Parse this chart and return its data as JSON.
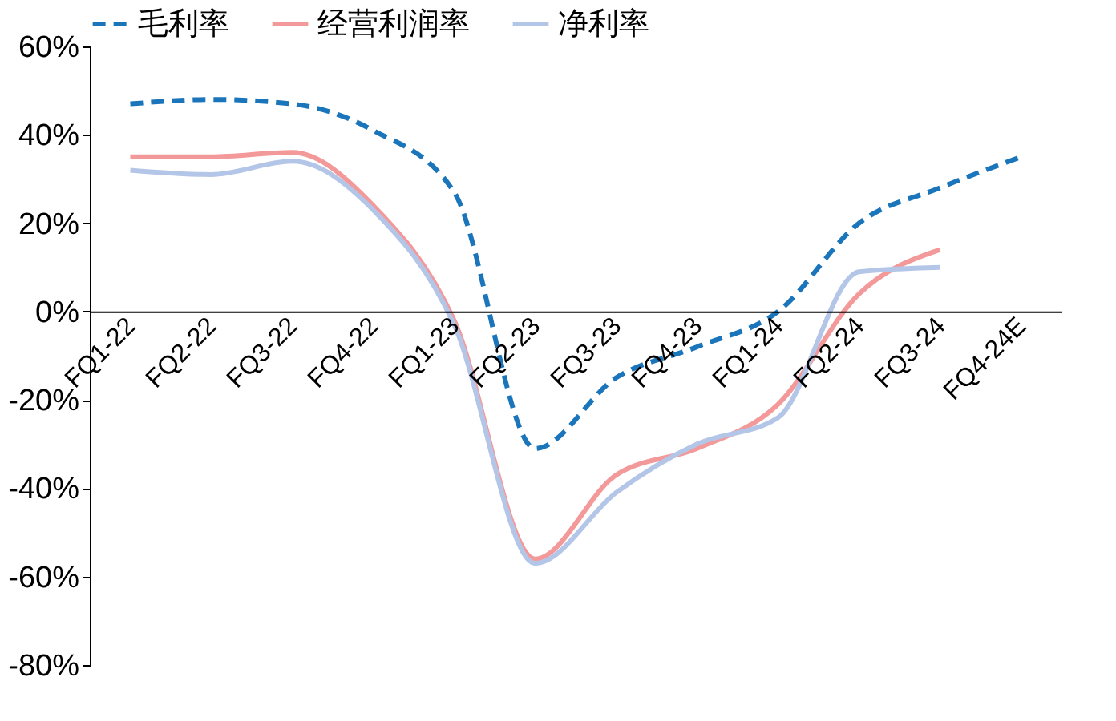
{
  "chart_data": {
    "type": "line",
    "categories": [
      "FQ1-22",
      "FQ2-22",
      "FQ3-22",
      "FQ4-22",
      "FQ1-23",
      "FQ2-23",
      "FQ3-23",
      "FQ4-23",
      "FQ1-24",
      "FQ2-24",
      "FQ3-24",
      "FQ4-24E"
    ],
    "series": [
      {
        "name": "毛利率",
        "color": "#1b75bb",
        "line_style": "dashed",
        "values": [
          47,
          48,
          47,
          41,
          27,
          -31,
          -15,
          -8,
          0,
          20,
          28,
          35
        ]
      },
      {
        "name": "经营利润率",
        "color": "#f4999a",
        "line_style": "solid",
        "values": [
          35,
          35,
          36,
          24,
          -2,
          -56,
          -37,
          -31,
          -21,
          4,
          14,
          null
        ]
      },
      {
        "name": "净利率",
        "color": "#b4c6e7",
        "line_style": "solid",
        "values": [
          32,
          31,
          34,
          23,
          -3,
          -57,
          -41,
          -30,
          -24,
          9,
          10,
          null
        ]
      }
    ],
    "ylim": [
      -80,
      60
    ],
    "yticks": [
      {
        "value": -80,
        "label": "-80%"
      },
      {
        "value": -60,
        "label": "-60%"
      },
      {
        "value": -40,
        "label": "-40%"
      },
      {
        "value": -20,
        "label": "-20%"
      },
      {
        "value": 0,
        "label": "0%"
      },
      {
        "value": 20,
        "label": "20%"
      },
      {
        "value": 40,
        "label": "40%"
      },
      {
        "value": 60,
        "label": "60%"
      }
    ],
    "legend": "top",
    "grid": false
  }
}
